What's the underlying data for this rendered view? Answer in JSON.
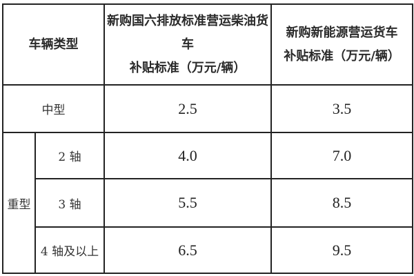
{
  "header": {
    "vehicle_type": "车辆类型",
    "diesel_line1": "新购国六排放标准营运柴油货车",
    "diesel_line2": "补贴标准（万元/辆）",
    "ev_line1": "新购新能源营运货车",
    "ev_line2": "补贴标准（万元/辆）"
  },
  "rows": {
    "medium": {
      "label": "中型",
      "diesel": "2.5",
      "ev": "3.5"
    },
    "heavy_label": "重型",
    "heavy": [
      {
        "label": "2 轴",
        "diesel": "4.0",
        "ev": "7.0"
      },
      {
        "label": "3 轴",
        "diesel": "5.5",
        "ev": "8.5"
      },
      {
        "label": "4 轴及以上",
        "diesel": "6.5",
        "ev": "9.5"
      }
    ]
  }
}
